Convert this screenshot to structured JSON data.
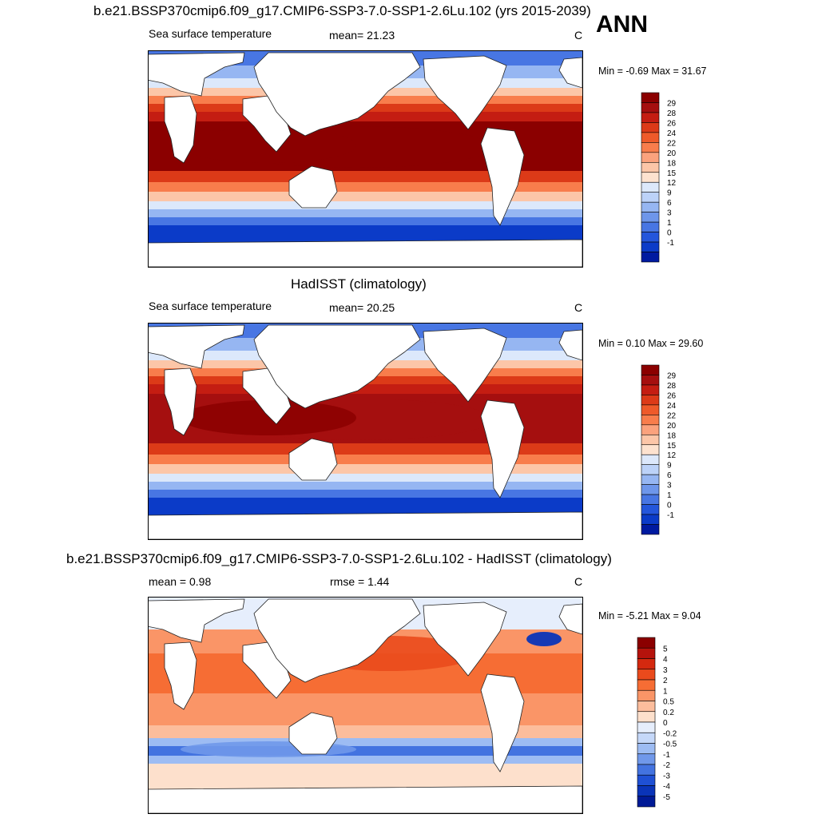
{
  "panel_label": "ANN",
  "panels": [
    {
      "title": "b.e21.BSSP370cmip6.f09_g17.CMIP6-SSP3-7.0-SSP1-2.6Lu.102 (yrs 2015-2039)",
      "left_label": "Sea surface temperature",
      "center_label": "mean=  21.23",
      "units": "C",
      "minmax": "Min =  -0.69 Max =  31.67"
    },
    {
      "title": "HadISST (climatology)",
      "left_label": "Sea surface temperature",
      "center_label": "mean=  20.25",
      "units": "C",
      "minmax": "Min =   0.10 Max =  29.60"
    },
    {
      "title": "b.e21.BSSP370cmip6.f09_g17.CMIP6-SSP3-7.0-SSP1-2.6Lu.102 - HadISST (climatology)",
      "left_label": "mean =   0.98",
      "center_label": "rmse =   1.44",
      "units": "C",
      "minmax": "Min =  -5.21 Max =   9.04"
    }
  ],
  "chart_data": [
    {
      "type": "heatmap",
      "title": "b.e21.BSSP370cmip6.f09_g17.CMIP6-SSP3-7.0-SSP1-2.6Lu.102 (yrs 2015-2039)",
      "variable": "Sea surface temperature",
      "units": "C",
      "mean": 21.23,
      "min": -0.69,
      "max": 31.67,
      "colorbar_levels": [
        "29",
        "28",
        "26",
        "24",
        "22",
        "20",
        "18",
        "15",
        "12",
        "9",
        "6",
        "3",
        "1",
        "0",
        "-1"
      ],
      "colorbar_colors": [
        "#8b0000",
        "#a50f0f",
        "#c41d12",
        "#dc3a18",
        "#ee5a2a",
        "#f87d4c",
        "#fba27d",
        "#fcc6a8",
        "#fde2cf",
        "#dce8fb",
        "#bcd2f8",
        "#96b6f2",
        "#6e96ea",
        "#4876e3",
        "#2456db",
        "#0b3bc8",
        "#001aa0"
      ]
    },
    {
      "type": "heatmap",
      "title": "HadISST (climatology)",
      "variable": "Sea surface temperature",
      "units": "C",
      "mean": 20.25,
      "min": 0.1,
      "max": 29.6,
      "colorbar_levels": [
        "29",
        "28",
        "26",
        "24",
        "22",
        "20",
        "18",
        "15",
        "12",
        "9",
        "6",
        "3",
        "1",
        "0",
        "-1"
      ],
      "colorbar_colors": [
        "#8b0000",
        "#a50f0f",
        "#c41d12",
        "#dc3a18",
        "#ee5a2a",
        "#f87d4c",
        "#fba27d",
        "#fcc6a8",
        "#fde2cf",
        "#dce8fb",
        "#bcd2f8",
        "#96b6f2",
        "#6e96ea",
        "#4876e3",
        "#2456db",
        "#0b3bc8",
        "#001aa0"
      ]
    },
    {
      "type": "heatmap",
      "title": "b.e21.BSSP370cmip6.f09_g17.CMIP6-SSP3-7.0-SSP1-2.6Lu.102 - HadISST (climatology)",
      "units": "C",
      "mean": 0.98,
      "rmse": 1.44,
      "min": -5.21,
      "max": 9.04,
      "colorbar_levels": [
        "5",
        "4",
        "3",
        "2",
        "1",
        "0.5",
        "0.2",
        "0",
        "-0.2",
        "-0.5",
        "-1",
        "-2",
        "-3",
        "-4",
        "-5"
      ],
      "colorbar_colors": [
        "#8b0000",
        "#b5130c",
        "#d4290f",
        "#ea4a1c",
        "#f66d34",
        "#fa9567",
        "#fcbd9c",
        "#fde0cc",
        "#e6eefc",
        "#c5d8f9",
        "#9dbcf3",
        "#7098ea",
        "#4373e0",
        "#1f50d4",
        "#0a34b8",
        "#001a96"
      ]
    }
  ]
}
